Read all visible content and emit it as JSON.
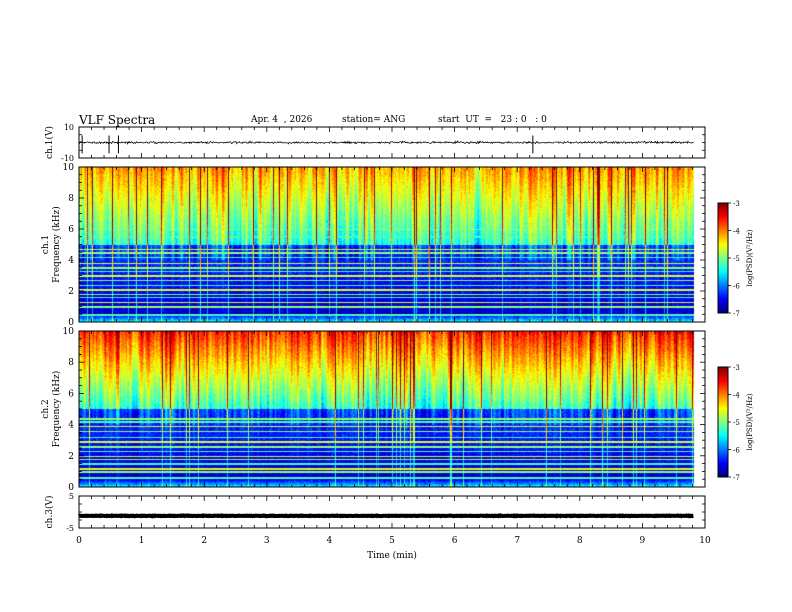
{
  "header": {
    "title": "VLF Spectra",
    "date": "Apr. 4  , 2026",
    "station": "station= ANG",
    "start": "start  UT  =   23 : 0   : 0"
  },
  "chart_data": [
    {
      "type": "line",
      "panel": "ch1-waveform",
      "ylabel": "ch.1(V)",
      "ylim": [
        -10,
        10
      ],
      "yticks": [
        "10",
        "-10"
      ],
      "baseline_value": 0,
      "xlim": [
        0,
        10
      ],
      "data_end_min": 9.82,
      "spikes_min": [
        0.05,
        0.48,
        0.63,
        7.25
      ]
    },
    {
      "type": "heatmap",
      "panel": "ch1-spectrogram",
      "ylabel": "Frequency  (kHz)",
      "channel_label": "ch.1",
      "ylim": [
        0,
        10
      ],
      "yticks": [
        "0",
        "2",
        "4",
        "6",
        "8",
        "10"
      ],
      "xlim": [
        0,
        10
      ],
      "data_end_min": 9.82,
      "hum_lines_khz": [
        0.5,
        1.0,
        1.3,
        1.6,
        1.8,
        2.1,
        2.4,
        2.7,
        3.0,
        3.3,
        3.5,
        3.8,
        4.2,
        4.5,
        4.7,
        5.5,
        6.0
      ],
      "colorbar": {
        "label": "log(PSD)(V²/Hz)",
        "min": -7,
        "max": -3,
        "ticks": [
          "-3",
          "-4",
          "-5",
          "-6",
          "-7"
        ]
      }
    },
    {
      "type": "heatmap",
      "panel": "ch2-spectrogram",
      "ylabel": "Frequency  (kHz)",
      "channel_label": "ch.2",
      "ylim": [
        0,
        10
      ],
      "yticks": [
        "0",
        "2",
        "4",
        "6",
        "8",
        "10"
      ],
      "xlim": [
        0,
        10
      ],
      "data_end_min": 9.82,
      "hum_lines_khz": [
        0.6,
        1.0,
        1.2,
        1.5,
        1.8,
        2.0,
        2.3,
        2.6,
        2.9,
        3.2,
        3.6,
        3.9,
        4.2,
        4.4
      ],
      "colorbar": {
        "label": "log(PSD)(V²/Hz)",
        "min": -7,
        "max": -3,
        "ticks": [
          "-3",
          "-4",
          "-5",
          "-6",
          "-7"
        ]
      }
    },
    {
      "type": "line",
      "panel": "ch3-waveform",
      "ylabel": "ch.3(V)",
      "ylim": [
        -5,
        5
      ],
      "yticks": [
        "5",
        "-5"
      ],
      "baseline_value": -1.2,
      "xlim": [
        0,
        10
      ],
      "data_end_min": 9.82
    }
  ],
  "xaxis": {
    "label": "Time  (min)",
    "ticks": [
      "0",
      "1",
      "2",
      "3",
      "4",
      "5",
      "6",
      "7",
      "8",
      "9",
      "10"
    ]
  }
}
